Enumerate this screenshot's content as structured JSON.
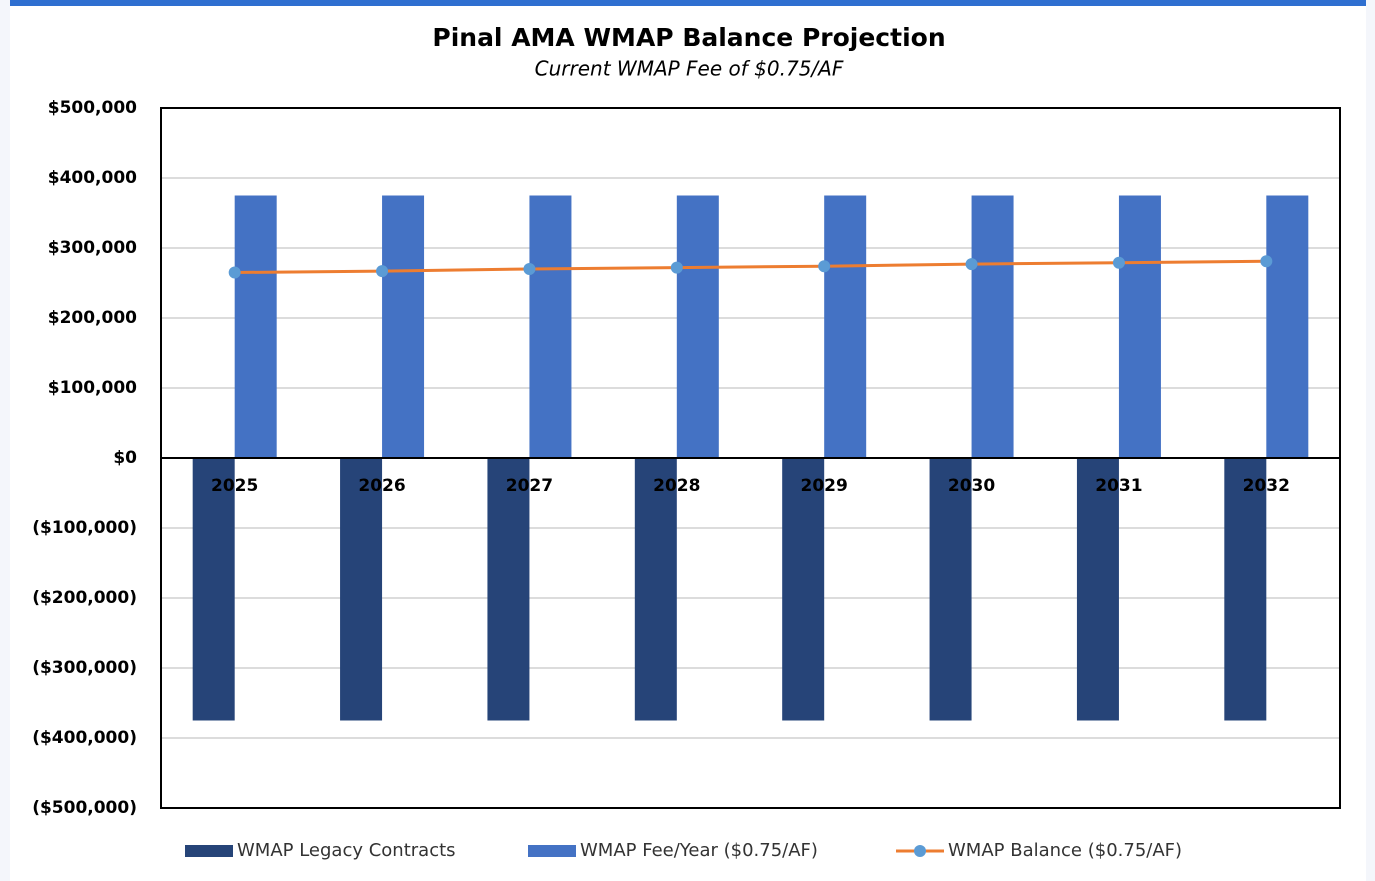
{
  "chart_data": {
    "type": "bar",
    "title": "Pinal AMA WMAP Balance Projection",
    "subtitle": "Current WMAP Fee of $0.75/AF",
    "categories": [
      "2025",
      "2026",
      "2027",
      "2028",
      "2029",
      "2030",
      "2031",
      "2032"
    ],
    "series": [
      {
        "name": "WMAP Legacy Contracts",
        "type": "bar",
        "color": "#264478",
        "values": [
          -375000,
          -375000,
          -375000,
          -375000,
          -375000,
          -375000,
          -375000,
          -375000
        ]
      },
      {
        "name": "WMAP Fee/Year ($0.75/AF)",
        "type": "bar",
        "color": "#4472c4",
        "values": [
          375000,
          375000,
          375000,
          375000,
          375000,
          375000,
          375000,
          375000
        ]
      },
      {
        "name": "WMAP Balance ($0.75/AF)",
        "type": "line",
        "color": "#ed7d31",
        "marker_color": "#5b9bd5",
        "values": [
          265000,
          267000,
          270000,
          272000,
          274000,
          277000,
          279000,
          281000
        ]
      }
    ],
    "ylim": [
      -500000,
      500000
    ],
    "yticks": [
      {
        "value": 500000,
        "label": "$500,000"
      },
      {
        "value": 400000,
        "label": "$400,000"
      },
      {
        "value": 300000,
        "label": "$300,000"
      },
      {
        "value": 200000,
        "label": "$200,000"
      },
      {
        "value": 100000,
        "label": "$100,000"
      },
      {
        "value": 0,
        "label": "$0"
      },
      {
        "value": -100000,
        "label": "($100,000)"
      },
      {
        "value": -200000,
        "label": "($200,000)"
      },
      {
        "value": -300000,
        "label": "($300,000)"
      },
      {
        "value": -400000,
        "label": "($400,000)"
      },
      {
        "value": -500000,
        "label": "($500,000)"
      }
    ],
    "grid": true,
    "legend": "bottom"
  }
}
